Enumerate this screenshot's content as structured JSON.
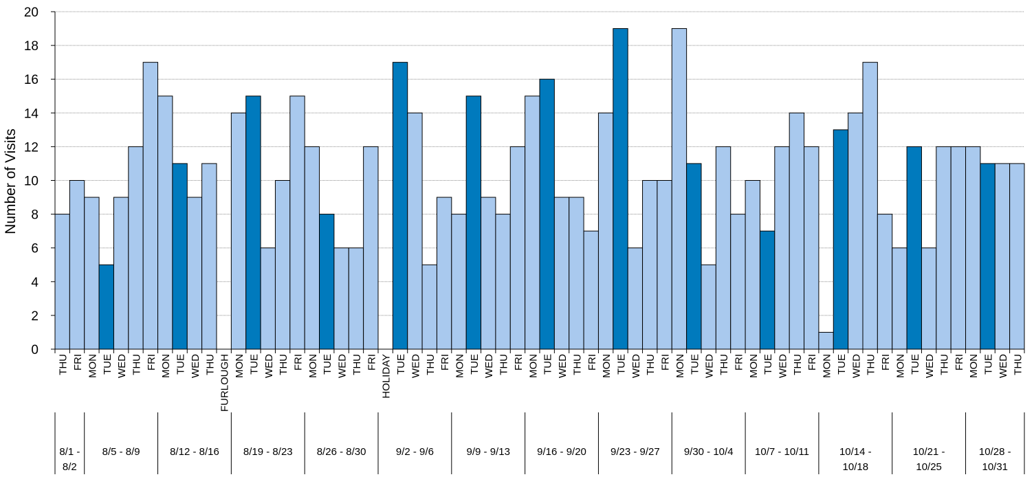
{
  "chart_data": {
    "type": "bar",
    "ylabel": "Number of Visits",
    "ylim": [
      0,
      20
    ],
    "yticks": [
      0,
      2,
      4,
      6,
      8,
      10,
      12,
      14,
      16,
      18,
      20
    ],
    "grid": true,
    "colors": {
      "default": "#A9C9EE",
      "tuesday": "#007ABD",
      "edge": "#000000"
    },
    "categories": [
      "THU",
      "FRI",
      "MON",
      "TUE",
      "WED",
      "THU",
      "FRI",
      "MON",
      "TUE",
      "WED",
      "THU",
      "FURLOUGH",
      "MON",
      "TUE",
      "WED",
      "THU",
      "FRI",
      "MON",
      "TUE",
      "WED",
      "THU",
      "FRI",
      "HOLIDAY",
      "TUE",
      "WED",
      "THU",
      "FRI",
      "MON",
      "TUE",
      "WED",
      "THU",
      "FRI",
      "MON",
      "TUE",
      "WED",
      "THU",
      "FRI",
      "MON",
      "TUE",
      "WED",
      "THU",
      "FRI",
      "MON",
      "TUE",
      "WED",
      "THU",
      "FRI",
      "MON",
      "TUE",
      "WED",
      "THU",
      "FRI",
      "MON",
      "TUE",
      "WED",
      "THU",
      "FRI",
      "MON",
      "TUE",
      "WED",
      "THU",
      "FRI",
      "MON",
      "TUE",
      "WED",
      "THU"
    ],
    "values": [
      8,
      10,
      9,
      5,
      9,
      12,
      17,
      15,
      11,
      9,
      11,
      0,
      14,
      15,
      6,
      10,
      15,
      12,
      8,
      6,
      6,
      12,
      0,
      17,
      14,
      5,
      9,
      8,
      15,
      9,
      8,
      12,
      15,
      16,
      9,
      9,
      7,
      14,
      19,
      6,
      10,
      10,
      19,
      11,
      5,
      12,
      8,
      10,
      7,
      12,
      14,
      12,
      1,
      13,
      14,
      17,
      8,
      6,
      12,
      6,
      12,
      12,
      12,
      11,
      11,
      11
    ],
    "groups": [
      {
        "label": "8/1 -\n8/2",
        "start": 0,
        "end": 1
      },
      {
        "label": "8/5 - 8/9",
        "start": 2,
        "end": 6
      },
      {
        "label": "8/12 - 8/16",
        "start": 7,
        "end": 11
      },
      {
        "label": "8/19 - 8/23",
        "start": 12,
        "end": 16
      },
      {
        "label": "8/26 - 8/30",
        "start": 17,
        "end": 21
      },
      {
        "label": "9/2 - 9/6",
        "start": 22,
        "end": 26
      },
      {
        "label": "9/9 - 9/13",
        "start": 27,
        "end": 31
      },
      {
        "label": "9/16 - 9/20",
        "start": 32,
        "end": 36
      },
      {
        "label": "9/23 - 9/27",
        "start": 37,
        "end": 41
      },
      {
        "label": "9/30 - 10/4",
        "start": 42,
        "end": 46
      },
      {
        "label": "10/7 - 10/11",
        "start": 47,
        "end": 51
      },
      {
        "label": "10/14 -\n10/18",
        "start": 52,
        "end": 56
      },
      {
        "label": "10/21 -\n10/25",
        "start": 57,
        "end": 61
      },
      {
        "label": "10/28 -\n10/31",
        "start": 62,
        "end": 65
      }
    ]
  }
}
